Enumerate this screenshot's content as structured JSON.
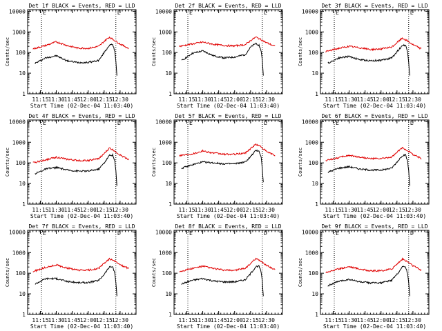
{
  "figure": {
    "start_time_label": "Start Time (02-Dec-04 11:03:40)",
    "y_axis_label": "Counts/sec",
    "colors": {
      "events": "#000000",
      "lld": "#e00000",
      "markers": "#000000",
      "axes": "#000000"
    }
  },
  "chart_data": [
    {
      "type": "line",
      "title": "Det 1f BLACK = Events, RED = LLD",
      "xlabel": "Start Time (02-Dec-04 11:03:40)",
      "ylabel": "Counts/sec",
      "x_ticks": [
        "11:15",
        "11:30",
        "11:45",
        "12:00",
        "12:15",
        "12:30"
      ],
      "y_ticks": [
        "1",
        "10",
        "100",
        "1000",
        "10000"
      ],
      "ylim": [
        1,
        12000
      ],
      "yscale": "log",
      "markers": [
        "11:16",
        "12:26"
      ],
      "corner_marks": [
        "E",
        "L"
      ],
      "series": [
        {
          "name": "Events",
          "color": "black",
          "x": [
            "11:10",
            "11:20",
            "11:30",
            "11:40",
            "11:50",
            "12:00",
            "12:10",
            "12:15",
            "12:20",
            "12:23",
            "12:25",
            "12:26",
            "12:27"
          ],
          "values": [
            30,
            55,
            70,
            40,
            33,
            33,
            42,
            100,
            230,
            240,
            120,
            40,
            8
          ]
        },
        {
          "name": "LLD",
          "color": "red",
          "x": [
            "11:08",
            "11:20",
            "11:30",
            "11:40",
            "11:50",
            "12:00",
            "12:10",
            "12:15",
            "12:20",
            "12:25",
            "12:30",
            "12:38"
          ],
          "values": [
            150,
            220,
            330,
            220,
            165,
            160,
            200,
            350,
            560,
            380,
            260,
            160
          ]
        }
      ]
    },
    {
      "type": "line",
      "title": "Det 2f BLACK = Events, RED = LLD",
      "xlabel": "Start Time (02-Dec-04 11:03:40)",
      "ylabel": "Counts/sec",
      "x_ticks": [
        "11:15",
        "11:30",
        "11:45",
        "12:00",
        "12:15",
        "12:30"
      ],
      "y_ticks": [
        "1",
        "10",
        "100",
        "1000",
        "10000"
      ],
      "ylim": [
        1,
        12000
      ],
      "yscale": "log",
      "markers": [
        "11:16",
        "12:26"
      ],
      "corner_marks": [
        "E",
        "L"
      ],
      "series": [
        {
          "name": "Events",
          "color": "black",
          "x": [
            "11:10",
            "11:20",
            "11:30",
            "11:40",
            "11:50",
            "12:00",
            "12:10",
            "12:15",
            "12:20",
            "12:23",
            "12:25",
            "12:26",
            "12:27"
          ],
          "values": [
            40,
            90,
            120,
            70,
            55,
            60,
            80,
            180,
            280,
            220,
            120,
            40,
            8
          ]
        },
        {
          "name": "LLD",
          "color": "red",
          "x": [
            "11:08",
            "11:20",
            "11:30",
            "11:40",
            "11:50",
            "12:00",
            "12:10",
            "12:15",
            "12:20",
            "12:25",
            "12:30",
            "12:38"
          ],
          "values": [
            200,
            260,
            320,
            250,
            220,
            210,
            240,
            380,
            560,
            420,
            300,
            200
          ]
        }
      ]
    },
    {
      "type": "line",
      "title": "Det 3f BLACK = Events, RED = LLD",
      "xlabel": "Start Time (02-Dec-04 11:03:40)",
      "ylabel": "Counts/sec",
      "x_ticks": [
        "11:15",
        "11:30",
        "11:45",
        "12:00",
        "12:15",
        "12:30"
      ],
      "y_ticks": [
        "1",
        "10",
        "100",
        "1000",
        "10000"
      ],
      "ylim": [
        1,
        12000
      ],
      "yscale": "log",
      "markers": [
        "11:16",
        "12:26"
      ],
      "corner_marks": [
        "E",
        "L"
      ],
      "series": [
        {
          "name": "Events",
          "color": "black",
          "x": [
            "11:10",
            "11:20",
            "11:30",
            "11:40",
            "11:50",
            "12:00",
            "12:10",
            "12:15",
            "12:20",
            "12:23",
            "12:25",
            "12:26",
            "12:27"
          ],
          "values": [
            30,
            55,
            65,
            45,
            40,
            42,
            55,
            110,
            220,
            230,
            110,
            35,
            8
          ]
        },
        {
          "name": "LLD",
          "color": "red",
          "x": [
            "11:08",
            "11:20",
            "11:30",
            "11:40",
            "11:50",
            "12:00",
            "12:10",
            "12:15",
            "12:20",
            "12:25",
            "12:30",
            "12:38"
          ],
          "values": [
            110,
            160,
            200,
            170,
            140,
            150,
            180,
            300,
            500,
            360,
            240,
            150
          ]
        }
      ]
    },
    {
      "type": "line",
      "title": "Det 4f BLACK = Events, RED = LLD",
      "xlabel": "Start Time (02-Dec-04 11:03:40)",
      "ylabel": "Counts/sec",
      "x_ticks": [
        "11:15",
        "11:30",
        "11:45",
        "12:00",
        "12:15",
        "12:30"
      ],
      "y_ticks": [
        "1",
        "10",
        "100",
        "1000",
        "10000"
      ],
      "ylim": [
        1,
        12000
      ],
      "yscale": "log",
      "markers": [
        "11:16",
        "12:26"
      ],
      "corner_marks": [
        "E",
        "L"
      ],
      "series": [
        {
          "name": "Events",
          "color": "black",
          "x": [
            "11:10",
            "11:20",
            "11:30",
            "11:40",
            "11:50",
            "12:00",
            "12:10",
            "12:15",
            "12:20",
            "12:23",
            "12:25",
            "12:26",
            "12:27"
          ],
          "values": [
            30,
            50,
            60,
            45,
            40,
            40,
            50,
            100,
            230,
            240,
            120,
            40,
            8
          ]
        },
        {
          "name": "LLD",
          "color": "red",
          "x": [
            "11:08",
            "11:20",
            "11:30",
            "11:40",
            "11:50",
            "12:00",
            "12:10",
            "12:15",
            "12:20",
            "12:25",
            "12:30",
            "12:38"
          ],
          "values": [
            100,
            140,
            190,
            150,
            130,
            130,
            160,
            280,
            520,
            380,
            240,
            150
          ]
        }
      ]
    },
    {
      "type": "line",
      "title": "Det 5f BLACK = Events, RED = LLD",
      "xlabel": "Start Time (02-Dec-04 11:03:40)",
      "ylabel": "Counts/sec",
      "x_ticks": [
        "11:15",
        "11:30",
        "11:45",
        "12:00",
        "12:15",
        "12:30"
      ],
      "y_ticks": [
        "1",
        "10",
        "100",
        "1000",
        "10000"
      ],
      "ylim": [
        1,
        12000
      ],
      "yscale": "log",
      "markers": [
        "11:16",
        "12:26"
      ],
      "corner_marks": [
        "E",
        "L"
      ],
      "series": [
        {
          "name": "Events",
          "color": "black",
          "x": [
            "11:10",
            "11:20",
            "11:30",
            "11:40",
            "11:50",
            "12:00",
            "12:10",
            "12:15",
            "12:20",
            "12:23",
            "12:25",
            "12:26",
            "12:27"
          ],
          "values": [
            55,
            80,
            110,
            100,
            90,
            90,
            110,
            200,
            400,
            380,
            180,
            50,
            12
          ]
        },
        {
          "name": "LLD",
          "color": "red",
          "x": [
            "11:08",
            "11:20",
            "11:30",
            "11:40",
            "11:50",
            "12:00",
            "12:10",
            "12:15",
            "12:20",
            "12:25",
            "12:30",
            "12:38"
          ],
          "values": [
            230,
            270,
            380,
            300,
            260,
            260,
            300,
            500,
            800,
            600,
            350,
            230
          ]
        }
      ]
    },
    {
      "type": "line",
      "title": "Det 6f BLACK = Events, RED = LLD",
      "xlabel": "Start Time (02-Dec-04 11:03:40)",
      "ylabel": "Counts/sec",
      "x_ticks": [
        "11:15",
        "11:30",
        "11:45",
        "12:00",
        "12:15",
        "12:30"
      ],
      "y_ticks": [
        "1",
        "10",
        "100",
        "1000",
        "10000"
      ],
      "ylim": [
        1,
        12000
      ],
      "yscale": "log",
      "markers": [
        "11:16",
        "12:26"
      ],
      "corner_marks": [
        "E",
        "L"
      ],
      "series": [
        {
          "name": "Events",
          "color": "black",
          "x": [
            "11:10",
            "11:20",
            "11:30",
            "11:40",
            "11:50",
            "12:00",
            "12:10",
            "12:15",
            "12:20",
            "12:23",
            "12:25",
            "12:26",
            "12:27"
          ],
          "values": [
            35,
            55,
            65,
            50,
            45,
            45,
            55,
            110,
            230,
            240,
            120,
            40,
            8
          ]
        },
        {
          "name": "LLD",
          "color": "red",
          "x": [
            "11:08",
            "11:20",
            "11:30",
            "11:40",
            "11:50",
            "12:00",
            "12:10",
            "12:15",
            "12:20",
            "12:25",
            "12:30",
            "12:38"
          ],
          "values": [
            130,
            180,
            230,
            190,
            160,
            160,
            190,
            320,
            540,
            400,
            260,
            160
          ]
        }
      ]
    },
    {
      "type": "line",
      "title": "Det 7f BLACK = Events, RED = LLD",
      "xlabel": "Start Time (02-Dec-04 11:03:40)",
      "ylabel": "Counts/sec",
      "x_ticks": [
        "11:15",
        "11:30",
        "11:45",
        "12:00",
        "12:15",
        "12:30"
      ],
      "y_ticks": [
        "1",
        "10",
        "100",
        "1000",
        "10000"
      ],
      "ylim": [
        1,
        12000
      ],
      "yscale": "log",
      "markers": [
        "11:16",
        "12:26"
      ],
      "corner_marks": [
        "E",
        "L"
      ],
      "series": [
        {
          "name": "Events",
          "color": "black",
          "x": [
            "11:10",
            "11:20",
            "11:30",
            "11:40",
            "11:50",
            "12:00",
            "12:10",
            "12:15",
            "12:20",
            "12:23",
            "12:25",
            "12:26",
            "12:27"
          ],
          "values": [
            30,
            55,
            55,
            40,
            35,
            35,
            45,
            90,
            200,
            210,
            100,
            35,
            8
          ]
        },
        {
          "name": "LLD",
          "color": "red",
          "x": [
            "11:08",
            "11:20",
            "11:30",
            "11:40",
            "11:50",
            "12:00",
            "12:10",
            "12:15",
            "12:20",
            "12:25",
            "12:30",
            "12:38"
          ],
          "values": [
            120,
            190,
            250,
            180,
            140,
            140,
            170,
            300,
            500,
            380,
            260,
            170
          ]
        }
      ]
    },
    {
      "type": "line",
      "title": "Det 8f BLACK = Events, RED = LLD",
      "xlabel": "Start Time (02-Dec-04 11:03:40)",
      "ylabel": "Counts/sec",
      "x_ticks": [
        "11:15",
        "11:30",
        "11:45",
        "12:00",
        "12:15",
        "12:30"
      ],
      "y_ticks": [
        "1",
        "10",
        "100",
        "1000",
        "10000"
      ],
      "ylim": [
        1,
        12000
      ],
      "yscale": "log",
      "markers": [
        "11:16",
        "12:26"
      ],
      "corner_marks": [
        "E",
        "L"
      ],
      "series": [
        {
          "name": "Events",
          "color": "black",
          "x": [
            "11:10",
            "11:20",
            "11:30",
            "11:40",
            "11:50",
            "12:00",
            "12:10",
            "12:15",
            "12:20",
            "12:23",
            "12:25",
            "12:26",
            "12:27"
          ],
          "values": [
            30,
            45,
            55,
            42,
            38,
            38,
            48,
            95,
            210,
            220,
            110,
            38,
            8
          ]
        },
        {
          "name": "LLD",
          "color": "red",
          "x": [
            "11:08",
            "11:20",
            "11:30",
            "11:40",
            "11:50",
            "12:00",
            "12:10",
            "12:15",
            "12:20",
            "12:25",
            "12:30",
            "12:38"
          ],
          "values": [
            120,
            170,
            220,
            170,
            140,
            140,
            170,
            300,
            500,
            380,
            240,
            150
          ]
        }
      ]
    },
    {
      "type": "line",
      "title": "Det 9f BLACK = Events, RED = LLD",
      "xlabel": "Start Time (02-Dec-04 11:03:40)",
      "ylabel": "Counts/sec",
      "x_ticks": [
        "11:15",
        "11:30",
        "11:45",
        "12:00",
        "12:15",
        "12:30"
      ],
      "y_ticks": [
        "1",
        "10",
        "100",
        "1000",
        "10000"
      ],
      "ylim": [
        1,
        12000
      ],
      "yscale": "log",
      "markers": [
        "11:16",
        "12:26"
      ],
      "corner_marks": [
        "E",
        "L"
      ],
      "series": [
        {
          "name": "Events",
          "color": "black",
          "x": [
            "11:10",
            "11:20",
            "11:30",
            "11:40",
            "11:50",
            "12:00",
            "12:10",
            "12:15",
            "12:20",
            "12:23",
            "12:25",
            "12:26",
            "12:27"
          ],
          "values": [
            25,
            40,
            50,
            38,
            34,
            34,
            45,
            90,
            200,
            210,
            100,
            35,
            8
          ]
        },
        {
          "name": "LLD",
          "color": "red",
          "x": [
            "11:08",
            "11:20",
            "11:30",
            "11:40",
            "11:50",
            "12:00",
            "12:10",
            "12:15",
            "12:20",
            "12:25",
            "12:30",
            "12:38"
          ],
          "values": [
            110,
            160,
            210,
            160,
            130,
            130,
            160,
            280,
            480,
            360,
            230,
            140
          ]
        }
      ]
    }
  ]
}
